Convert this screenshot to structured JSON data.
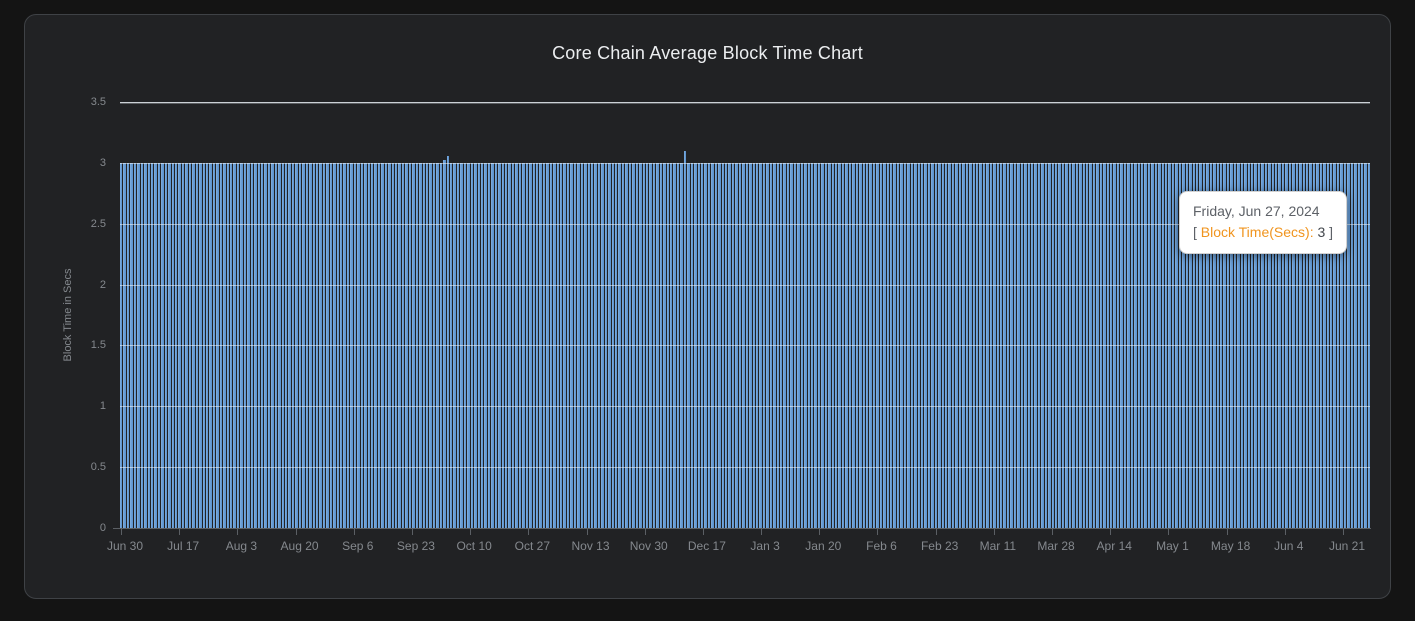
{
  "page": {
    "title": "Core Chain Average Block Time Chart"
  },
  "colors": {
    "page_bg": "#141414",
    "panel_bg": "#212224",
    "panel_border": "#3f4246",
    "title_color": "#eceef0",
    "axis_text": "#85898e",
    "axis_line": "#5b5f64",
    "gridline": "rgba(255,255,255,0.5)",
    "top_gridline": "#ccd1d6",
    "bar_color": "#5e95d0",
    "bar_light": "#82afde",
    "tooltip_bg": "#ffffff",
    "tooltip_border": "#d2d2d2",
    "tooltip_text": "#5d6167",
    "tooltip_value": "#43474d",
    "tooltip_accent": "#f0941e"
  },
  "chart_data": {
    "type": "bar",
    "title": "Core Chain Average Block Time Chart",
    "xlabel": "",
    "ylabel": "Block Time in Secs",
    "ylim": [
      0,
      3.5
    ],
    "yticks": [
      3.5,
      3,
      2.5,
      2,
      1.5,
      1,
      0.5,
      0
    ],
    "grid": true,
    "legend": "none",
    "x_tick_labels": [
      "Jun 30",
      "Jul 17",
      "Aug 3",
      "Aug 20",
      "Sep 6",
      "Sep 23",
      "Oct 10",
      "Oct 27",
      "Nov 13",
      "Nov 30",
      "Dec 17",
      "Jan 3",
      "Jan 20",
      "Feb 6",
      "Feb 23",
      "Mar 11",
      "Mar 28",
      "Apr 14",
      "May 1",
      "May 18",
      "Jun 4",
      "Jun 21"
    ],
    "num_bars": 364,
    "baseline_value": 3,
    "anomalies": [
      {
        "index": 94,
        "value": 3.02
      },
      {
        "index": 95,
        "value": 3.06
      },
      {
        "index": 164,
        "value": 3.1
      }
    ]
  },
  "tooltip": {
    "date": "Friday, Jun 27, 2024",
    "open_bracket": "[",
    "label": "Block Time(Secs):",
    "value": "3",
    "close_bracket": "]"
  }
}
